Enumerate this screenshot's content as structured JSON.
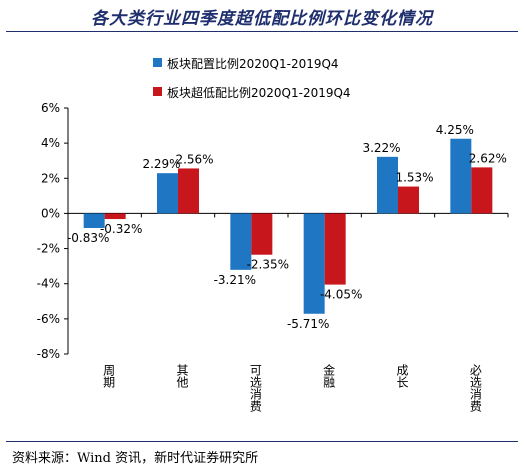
{
  "title": "各大类行业四季度超低配比例环比变化情况",
  "source": "资料来源：Wind 资讯，新时代证券研究所",
  "colors": {
    "series1": "#1f77c4",
    "series2": "#c8161d",
    "axis": "#000000"
  },
  "chart_data": {
    "type": "bar",
    "title": "各大类行业四季度超低配比例环比变化情况",
    "categories": [
      "周期",
      "其他",
      "可选消费",
      "金融",
      "成长",
      "必选消费"
    ],
    "series": [
      {
        "name": "板块配置比例2020Q1-2019Q4",
        "values": [
          -0.83,
          2.29,
          -3.21,
          -5.71,
          3.22,
          4.25
        ],
        "labels": [
          "-0.83%",
          "2.29%",
          "-3.21%",
          "-5.71%",
          "3.22%",
          "4.25%"
        ]
      },
      {
        "name": "板块超低配比例2020Q1-2019Q4",
        "values": [
          -0.32,
          2.56,
          -2.35,
          -4.05,
          1.53,
          2.62
        ],
        "labels": [
          "-0.32%",
          "2.56%",
          "-2.35%",
          "-4.05%",
          "1.53%",
          "2.62%"
        ]
      }
    ],
    "yticks": [
      "6%",
      "4%",
      "2%",
      "0%",
      "-2%",
      "-4%",
      "-6%",
      "-8%"
    ],
    "ytick_values": [
      6,
      4,
      2,
      0,
      -2,
      -4,
      -6,
      -8
    ],
    "ylim": [
      -8,
      6
    ],
    "legend_position": "top-center",
    "grid": false
  }
}
